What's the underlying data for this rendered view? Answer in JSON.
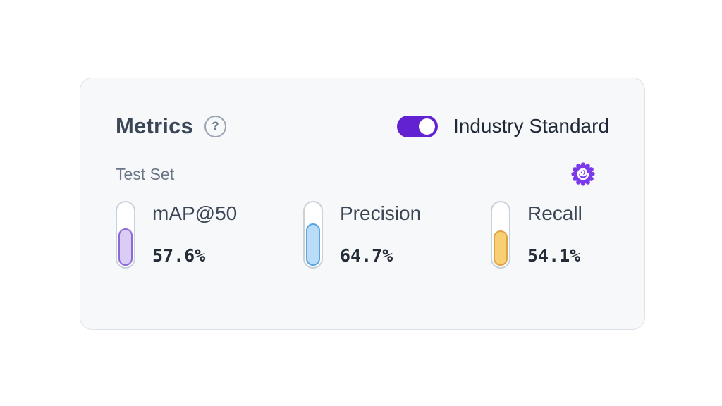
{
  "accent": {
    "toggle_on_color": "#6322d1",
    "badge_color": "#7c3aed"
  },
  "card": {
    "title": "Metrics",
    "help_label": "?",
    "toggle": {
      "label": "Industry Standard",
      "state": "on"
    },
    "dataset_label": "Test Set",
    "metrics": [
      {
        "label": "mAP@50",
        "value": "57.6%",
        "percent": 57.6,
        "fill_color": "#d9cdf5",
        "stroke_color": "#8b6ad6"
      },
      {
        "label": "Precision",
        "value": "64.7%",
        "percent": 64.7,
        "fill_color": "#b9dcf7",
        "stroke_color": "#5ba4e0"
      },
      {
        "label": "Recall",
        "value": "54.1%",
        "percent": 54.1,
        "fill_color": "#f8cf74",
        "stroke_color": "#e0a344"
      }
    ]
  }
}
